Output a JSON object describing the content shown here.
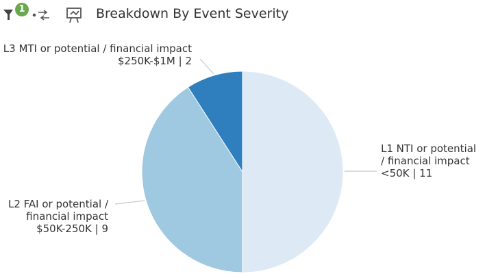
{
  "toolbar": {
    "filter_badge": "1"
  },
  "chart_data": {
    "type": "pie",
    "title": "Breakdown By Event Severity",
    "categories": [
      "L1 NTI or potential / financial impact <50K | 11",
      "L2 FAI or potential / financial impact $50K-250K | 9",
      "L3 MTI or potential / financial impact $250K-$1M | 2"
    ],
    "values": [
      11,
      9,
      2
    ],
    "colors": [
      "#dde9f5",
      "#9fc8e1",
      "#2f7fbf"
    ]
  }
}
